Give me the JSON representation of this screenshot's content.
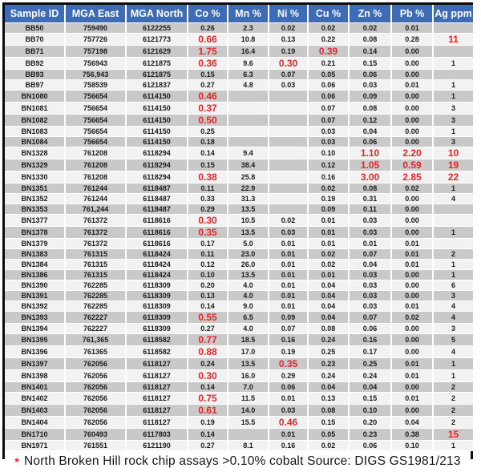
{
  "chart_data": {
    "type": "table",
    "columns": [
      {
        "key": "id",
        "label": "Sample ID"
      },
      {
        "key": "east",
        "label": "MGA East"
      },
      {
        "key": "north",
        "label": "MGA North"
      },
      {
        "key": "co",
        "label": "Co %"
      },
      {
        "key": "mn",
        "label": "Mn %"
      },
      {
        "key": "ni",
        "label": "Ni %"
      },
      {
        "key": "cu",
        "label": "Cu %"
      },
      {
        "key": "zn",
        "label": "Zn %"
      },
      {
        "key": "pb",
        "label": "Pb %"
      },
      {
        "key": "ag",
        "label": "Ag ppm"
      }
    ],
    "rows": [
      {
        "id": "BB50",
        "east": "759490",
        "north": "6122255",
        "co": "0.26",
        "mn": "2.3",
        "ni": "0.02",
        "cu": "0.02",
        "zn": "0.02",
        "pb": "0.01",
        "ag": "",
        "red": []
      },
      {
        "id": "BB70",
        "east": "757726",
        "north": "6121773",
        "co": "0.66",
        "mn": "10.8",
        "ni": "0.13",
        "cu": "0.22",
        "zn": "0.08",
        "pb": "0.28",
        "ag": "11",
        "red": [
          "co",
          "ag"
        ]
      },
      {
        "id": "BB71",
        "east": "757198",
        "north": "6121629",
        "co": "1.75",
        "mn": "16.4",
        "ni": "0.19",
        "cu": "0.39",
        "zn": "0.14",
        "pb": "0.00",
        "ag": "",
        "red": [
          "co",
          "cu"
        ]
      },
      {
        "id": "BB92",
        "east": "756943",
        "north": "6121875",
        "co": "0.36",
        "mn": "9.6",
        "ni": "0.30",
        "cu": "0.21",
        "zn": "0.15",
        "pb": "0.00",
        "ag": "1",
        "red": [
          "co",
          "ni"
        ]
      },
      {
        "id": "BB93",
        "east": "756,943",
        "north": "6121875",
        "co": "0.15",
        "mn": "6.3",
        "ni": "0.07",
        "cu": "0.05",
        "zn": "0.06",
        "pb": "0.00",
        "ag": "",
        "red": []
      },
      {
        "id": "BB97",
        "east": "758539",
        "north": "6121837",
        "co": "0.27",
        "mn": "4.8",
        "ni": "0.03",
        "cu": "0.06",
        "zn": "0.03",
        "pb": "0.01",
        "ag": "1",
        "red": []
      },
      {
        "id": "BN1080",
        "east": "756654",
        "north": "6114150",
        "co": "0.46",
        "mn": "",
        "ni": "",
        "cu": "0.06",
        "zn": "0.09",
        "pb": "0.00",
        "ag": "1",
        "red": [
          "co"
        ]
      },
      {
        "id": "BN1081",
        "east": "756654",
        "north": "6114150",
        "co": "0.37",
        "mn": "",
        "ni": "",
        "cu": "0.07",
        "zn": "0.08",
        "pb": "0.00",
        "ag": "3",
        "red": [
          "co"
        ]
      },
      {
        "id": "BN1082",
        "east": "756654",
        "north": "6114150",
        "co": "0.50",
        "mn": "",
        "ni": "",
        "cu": "0.07",
        "zn": "0.12",
        "pb": "0.00",
        "ag": "3",
        "red": [
          "co"
        ]
      },
      {
        "id": "BN1083",
        "east": "756654",
        "north": "6114150",
        "co": "0.25",
        "mn": "",
        "ni": "",
        "cu": "0.03",
        "zn": "0.04",
        "pb": "0.00",
        "ag": "1",
        "red": []
      },
      {
        "id": "BN1084",
        "east": "756654",
        "north": "6114150",
        "co": "0.18",
        "mn": "",
        "ni": "",
        "cu": "0.03",
        "zn": "0.06",
        "pb": "0.00",
        "ag": "3",
        "red": []
      },
      {
        "id": "BN1328",
        "east": "761208",
        "north": "6118294",
        "co": "0.14",
        "mn": "9.4",
        "ni": "",
        "cu": "0.10",
        "zn": "1.10",
        "pb": "2.20",
        "ag": "10",
        "red": [
          "zn",
          "pb",
          "ag"
        ]
      },
      {
        "id": "BN1329",
        "east": "761208",
        "north": "6118294",
        "co": "0.15",
        "mn": "38.4",
        "ni": "",
        "cu": "0.12",
        "zn": "1.05",
        "pb": "0.59",
        "ag": "19",
        "red": [
          "zn",
          "pb",
          "ag"
        ]
      },
      {
        "id": "BN1330",
        "east": "761208",
        "north": "6118294",
        "co": "0.38",
        "mn": "25.8",
        "ni": "",
        "cu": "0.16",
        "zn": "3.00",
        "pb": "2.85",
        "ag": "22",
        "red": [
          "co",
          "zn",
          "pb",
          "ag"
        ]
      },
      {
        "id": "BN1351",
        "east": "761244",
        "north": "6118487",
        "co": "0.11",
        "mn": "22.9",
        "ni": "",
        "cu": "0.02",
        "zn": "0.08",
        "pb": "0.02",
        "ag": "1",
        "red": []
      },
      {
        "id": "BN1352",
        "east": "761244",
        "north": "6118487",
        "co": "0.33",
        "mn": "31.3",
        "ni": "",
        "cu": "0.19",
        "zn": "0.31",
        "pb": "0.00",
        "ag": "4",
        "red": []
      },
      {
        "id": "BN1353",
        "east": "761,244",
        "north": "6118487",
        "co": "0.29",
        "mn": "13.5",
        "ni": "",
        "cu": "0.09",
        "zn": "0.11",
        "pb": "0.00",
        "ag": "",
        "red": []
      },
      {
        "id": "BN1377",
        "east": "761372",
        "north": "6118616",
        "co": "0.30",
        "mn": "10.5",
        "ni": "0.02",
        "cu": "0.01",
        "zn": "0.03",
        "pb": "0.00",
        "ag": "",
        "red": [
          "co"
        ]
      },
      {
        "id": "BN1378",
        "east": "761372",
        "north": "6118616",
        "co": "0.35",
        "mn": "13.5",
        "ni": "0.03",
        "cu": "0.01",
        "zn": "0.03",
        "pb": "0.00",
        "ag": "1",
        "red": [
          "co"
        ]
      },
      {
        "id": "BN1379",
        "east": "761372",
        "north": "6118616",
        "co": "0.17",
        "mn": "5.0",
        "ni": "0.01",
        "cu": "0.01",
        "zn": "0.01",
        "pb": "0.01",
        "ag": "",
        "red": []
      },
      {
        "id": "BN1383",
        "east": "761315",
        "north": "6118424",
        "co": "0.11",
        "mn": "23.0",
        "ni": "0.01",
        "cu": "0.02",
        "zn": "0.07",
        "pb": "0.01",
        "ag": "2",
        "red": []
      },
      {
        "id": "BN1384",
        "east": "761315",
        "north": "6118424",
        "co": "0.12",
        "mn": "26.0",
        "ni": "0.01",
        "cu": "0.02",
        "zn": "0.04",
        "pb": "0.01",
        "ag": "1",
        "red": []
      },
      {
        "id": "BN1386",
        "east": "761315",
        "north": "6118424",
        "co": "0.10",
        "mn": "13.5",
        "ni": "0.01",
        "cu": "0.01",
        "zn": "0.03",
        "pb": "0.00",
        "ag": "1",
        "red": []
      },
      {
        "id": "BN1390",
        "east": "762285",
        "north": "6118309",
        "co": "0.20",
        "mn": "4.0",
        "ni": "0.01",
        "cu": "0.04",
        "zn": "0.03",
        "pb": "0.00",
        "ag": "6",
        "red": []
      },
      {
        "id": "BN1391",
        "east": "762285",
        "north": "6118309",
        "co": "0.13",
        "mn": "4.0",
        "ni": "0.01",
        "cu": "0.04",
        "zn": "0.03",
        "pb": "0.00",
        "ag": "3",
        "red": []
      },
      {
        "id": "BN1392",
        "east": "762285",
        "north": "6118309",
        "co": "0.14",
        "mn": "9.0",
        "ni": "0.01",
        "cu": "0.04",
        "zn": "0.03",
        "pb": "0.01",
        "ag": "4",
        "red": []
      },
      {
        "id": "BN1393",
        "east": "762227",
        "north": "6118309",
        "co": "0.55",
        "mn": "6.5",
        "ni": "0.09",
        "cu": "0.04",
        "zn": "0.07",
        "pb": "0.02",
        "ag": "4",
        "red": [
          "co"
        ]
      },
      {
        "id": "BN1394",
        "east": "762227",
        "north": "6118309",
        "co": "0.27",
        "mn": "4.0",
        "ni": "0.07",
        "cu": "0.08",
        "zn": "0.06",
        "pb": "0.00",
        "ag": "3",
        "red": []
      },
      {
        "id": "BN1395",
        "east": "761,365",
        "north": "6118582",
        "co": "0.77",
        "mn": "18.5",
        "ni": "0.16",
        "cu": "0.24",
        "zn": "0.16",
        "pb": "0.00",
        "ag": "5",
        "red": [
          "co"
        ]
      },
      {
        "id": "BN1396",
        "east": "761365",
        "north": "6118582",
        "co": "0.88",
        "mn": "17.0",
        "ni": "0.19",
        "cu": "0.25",
        "zn": "0.17",
        "pb": "0.00",
        "ag": "4",
        "red": [
          "co"
        ]
      },
      {
        "id": "BN1397",
        "east": "762056",
        "north": "6118127",
        "co": "0.24",
        "mn": "13.5",
        "ni": "0.35",
        "cu": "0.23",
        "zn": "0.25",
        "pb": "0.01",
        "ag": "1",
        "red": [
          "ni"
        ]
      },
      {
        "id": "BN1398",
        "east": "762056",
        "north": "6118127",
        "co": "0.30",
        "mn": "16.0",
        "ni": "0.29",
        "cu": "0.24",
        "zn": "0.24",
        "pb": "0.01",
        "ag": "1",
        "red": [
          "co"
        ]
      },
      {
        "id": "BN1401",
        "east": "762056",
        "north": "6118127",
        "co": "0.14",
        "mn": "7.0",
        "ni": "0.06",
        "cu": "0.04",
        "zn": "0.04",
        "pb": "0.00",
        "ag": "2",
        "red": []
      },
      {
        "id": "BN1402",
        "east": "762056",
        "north": "6118127",
        "co": "0.75",
        "mn": "11.5",
        "ni": "0.01",
        "cu": "0.13",
        "zn": "0.15",
        "pb": "0.01",
        "ag": "2",
        "red": [
          "co"
        ]
      },
      {
        "id": "BN1403",
        "east": "762056",
        "north": "6118127",
        "co": "0.61",
        "mn": "14.0",
        "ni": "0.03",
        "cu": "0.08",
        "zn": "0.10",
        "pb": "0.00",
        "ag": "2",
        "red": [
          "co"
        ]
      },
      {
        "id": "BN1404",
        "east": "762056",
        "north": "6118127",
        "co": "0.19",
        "mn": "15.5",
        "ni": "0.46",
        "cu": "0.15",
        "zn": "0.20",
        "pb": "0.04",
        "ag": "2",
        "red": [
          "ni"
        ]
      },
      {
        "id": "BN1710",
        "east": "760493",
        "north": "6117803",
        "co": "0.14",
        "mn": "",
        "ni": "0.01",
        "cu": "0.05",
        "zn": "0.23",
        "pb": "0.38",
        "ag": "15",
        "red": [
          "ag"
        ]
      },
      {
        "id": "BN1971",
        "east": "761551",
        "north": "6121190",
        "co": "0.27",
        "mn": "8.1",
        "ni": "0.16",
        "cu": "0.02",
        "zn": "0.06",
        "pb": "0.10",
        "ag": "1",
        "red": []
      }
    ],
    "footnote": {
      "marker": "*",
      "text": "North Broken Hill rock chip assays >0.10% cobalt Source: DIGS GS1981/213"
    }
  },
  "colors": {
    "header_bg": "#3e6bb5",
    "header_text": "#ffffff",
    "stripe_dark": "#c9c9c9",
    "stripe_light": "#f2f2f2",
    "highlight_red": "#e52528",
    "frame_border": "#0b0b0b"
  }
}
